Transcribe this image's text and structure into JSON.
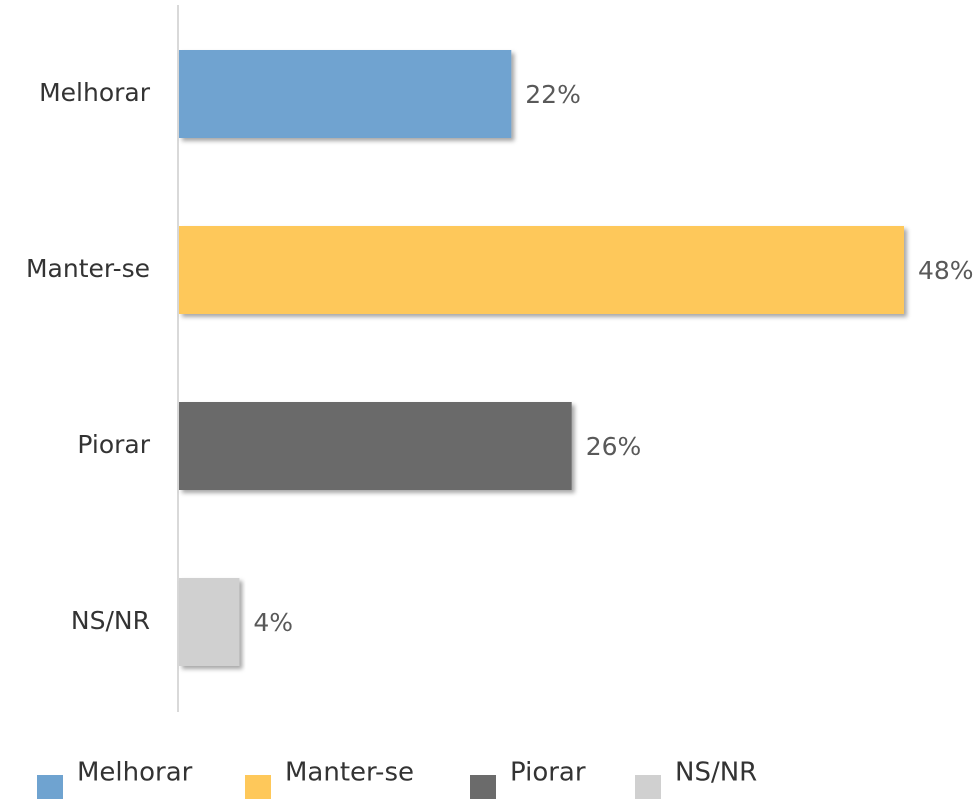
{
  "chart_data": {
    "type": "bar",
    "orientation": "horizontal",
    "categories": [
      "Melhorar",
      "Manter-se",
      "Piorar",
      "NS/NR"
    ],
    "values": [
      22,
      48,
      26,
      4
    ],
    "value_labels": [
      "22%",
      "48%",
      "26%",
      "4%"
    ],
    "colors": [
      "#6fa3d0",
      "#fec85a",
      "#6b6b6b",
      "#d0d0d0"
    ],
    "legend": true
  }
}
